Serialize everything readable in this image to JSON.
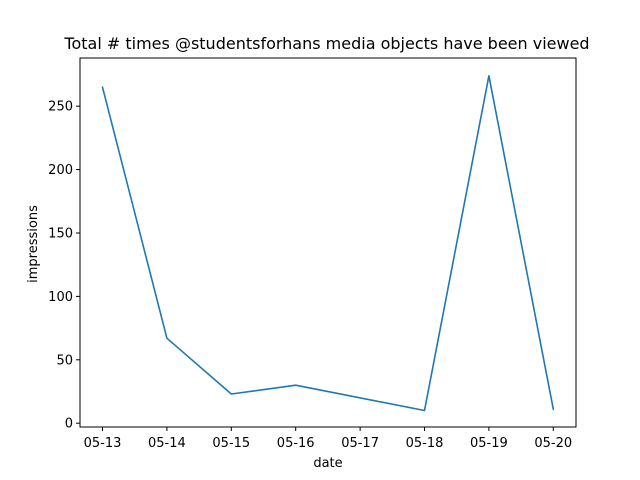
{
  "chart_data": {
    "type": "line",
    "title": "Total # times @studentsforhans media objects have been viewed",
    "xlabel": "date",
    "ylabel": "impressions",
    "categories": [
      "05-13",
      "05-14",
      "05-15",
      "05-16",
      "05-17",
      "05-18",
      "05-19",
      "05-20"
    ],
    "x_values": [
      0,
      1,
      2,
      3,
      5,
      6,
      7
    ],
    "y_values": [
      265,
      67,
      23,
      30,
      10,
      274,
      11
    ],
    "yticks": [
      0,
      50,
      100,
      150,
      200,
      250
    ],
    "ylim": [
      -3,
      288
    ],
    "grid": false,
    "line_color": "#1f77b4"
  }
}
